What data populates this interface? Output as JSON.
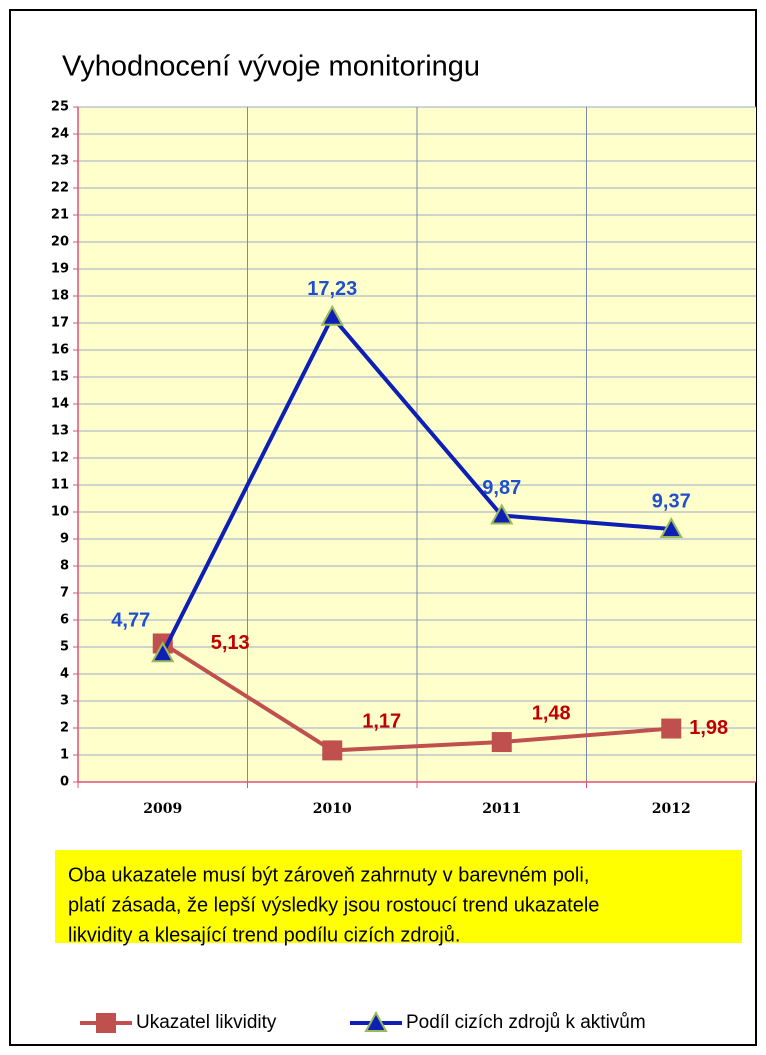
{
  "chart_data": {
    "type": "line",
    "title": "Vyhodnocení vývoje monitoringu",
    "categories": [
      "2009",
      "2010",
      "2011",
      "2012"
    ],
    "series": [
      {
        "name": "Ukazatel likvidity",
        "color": "#c0504d",
        "label_color": "#c00000",
        "marker": "square",
        "values": [
          5.13,
          1.17,
          1.48,
          1.98
        ],
        "value_labels": [
          "5,13",
          "1,17",
          "1,48",
          "1,98"
        ]
      },
      {
        "name": "Podíl cizích zdrojů k aktivům",
        "color": "#0d1fb5",
        "label_color": "#1f4fd0",
        "marker": "triangle",
        "values": [
          4.77,
          17.23,
          9.87,
          9.37
        ],
        "value_labels": [
          "4,77",
          "17,23",
          "9,87",
          "9,37"
        ]
      }
    ],
    "ylim": [
      0,
      25
    ],
    "yticks": [
      0,
      1,
      2,
      3,
      4,
      5,
      6,
      7,
      8,
      9,
      10,
      11,
      12,
      13,
      14,
      15,
      16,
      17,
      18,
      19,
      20,
      21,
      22,
      23,
      24,
      25
    ],
    "grid": true,
    "legend": "bottom",
    "annotation_lines": [
      "Oba ukazatele musí být zároveň zahrnuty v barevném poli,",
      "platí zásada, že lepší výsledky jsou rostoucí trend ukazatele",
      "likvidity a klesající trend podílu cizích zdrojů."
    ]
  }
}
